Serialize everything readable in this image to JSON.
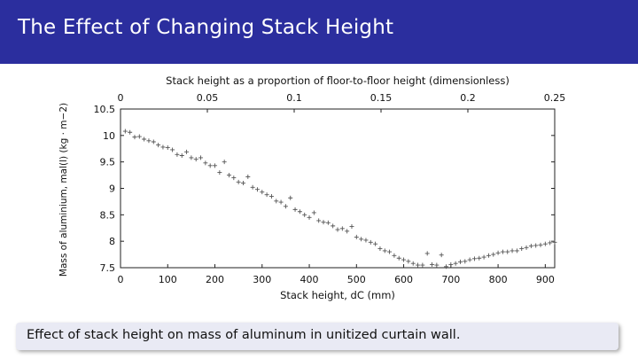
{
  "slide": {
    "title": "The Effect of Changing Stack Height",
    "caption": "Effect of stack height on mass of aluminum in unitized curtain wall."
  },
  "colors": {
    "title_bar": "#2b2e9e",
    "caption_box": "#e9eaf4"
  },
  "chart_data": {
    "type": "scatter",
    "title": "",
    "xlabel": "Stack height, dC (mm)",
    "ylabel": "Mass of aluminium, mal(l) (kg · m−2)",
    "x2label": "Stack height as a proportion of floor-to-floor height (dimensionless)",
    "xlim": [
      0,
      920
    ],
    "ylim": [
      7.5,
      10.5
    ],
    "x2lim": [
      0,
      0.25
    ],
    "xticks": [
      0,
      100,
      200,
      300,
      400,
      500,
      600,
      700,
      800,
      900
    ],
    "yticks": [
      7.5,
      8,
      8.5,
      9,
      9.5,
      10,
      10.5
    ],
    "x2ticks": [
      0,
      0.05,
      0.1,
      0.15,
      0.2,
      0.25
    ],
    "grid": false,
    "marker": "+",
    "series": [
      {
        "points": [
          [
            10,
            10.08
          ],
          [
            20,
            10.06
          ],
          [
            30,
            9.97
          ],
          [
            40,
            9.98
          ],
          [
            50,
            9.93
          ],
          [
            60,
            9.9
          ],
          [
            70,
            9.88
          ],
          [
            80,
            9.82
          ],
          [
            90,
            9.78
          ],
          [
            100,
            9.77
          ],
          [
            110,
            9.73
          ],
          [
            120,
            9.64
          ],
          [
            130,
            9.62
          ],
          [
            140,
            9.69
          ],
          [
            150,
            9.58
          ],
          [
            160,
            9.55
          ],
          [
            170,
            9.58
          ],
          [
            180,
            9.48
          ],
          [
            190,
            9.43
          ],
          [
            200,
            9.43
          ],
          [
            210,
            9.3
          ],
          [
            220,
            9.5
          ],
          [
            230,
            9.25
          ],
          [
            240,
            9.2
          ],
          [
            250,
            9.12
          ],
          [
            260,
            9.1
          ],
          [
            270,
            9.22
          ],
          [
            280,
            9.02
          ],
          [
            290,
            8.98
          ],
          [
            300,
            8.93
          ],
          [
            310,
            8.88
          ],
          [
            320,
            8.85
          ],
          [
            330,
            8.76
          ],
          [
            340,
            8.74
          ],
          [
            350,
            8.66
          ],
          [
            360,
            8.82
          ],
          [
            370,
            8.6
          ],
          [
            380,
            8.56
          ],
          [
            390,
            8.5
          ],
          [
            400,
            8.45
          ],
          [
            410,
            8.54
          ],
          [
            420,
            8.39
          ],
          [
            430,
            8.36
          ],
          [
            440,
            8.35
          ],
          [
            450,
            8.29
          ],
          [
            460,
            8.22
          ],
          [
            470,
            8.24
          ],
          [
            480,
            8.19
          ],
          [
            490,
            8.28
          ],
          [
            500,
            8.08
          ],
          [
            510,
            8.04
          ],
          [
            520,
            8.02
          ],
          [
            530,
            7.98
          ],
          [
            540,
            7.95
          ],
          [
            550,
            7.86
          ],
          [
            560,
            7.82
          ],
          [
            570,
            7.8
          ],
          [
            580,
            7.73
          ],
          [
            590,
            7.68
          ],
          [
            600,
            7.65
          ],
          [
            610,
            7.62
          ],
          [
            620,
            7.58
          ],
          [
            630,
            7.55
          ],
          [
            640,
            7.55
          ],
          [
            650,
            7.77
          ],
          [
            660,
            7.56
          ],
          [
            670,
            7.55
          ],
          [
            680,
            7.74
          ],
          [
            690,
            7.52
          ],
          [
            700,
            7.56
          ],
          [
            710,
            7.58
          ],
          [
            720,
            7.61
          ],
          [
            730,
            7.62
          ],
          [
            740,
            7.65
          ],
          [
            750,
            7.67
          ],
          [
            760,
            7.68
          ],
          [
            770,
            7.7
          ],
          [
            780,
            7.73
          ],
          [
            790,
            7.75
          ],
          [
            800,
            7.78
          ],
          [
            810,
            7.8
          ],
          [
            820,
            7.8
          ],
          [
            830,
            7.82
          ],
          [
            840,
            7.82
          ],
          [
            850,
            7.86
          ],
          [
            860,
            7.88
          ],
          [
            870,
            7.91
          ],
          [
            880,
            7.92
          ],
          [
            890,
            7.93
          ],
          [
            900,
            7.95
          ],
          [
            910,
            7.97
          ],
          [
            920,
            7.98
          ]
        ]
      }
    ]
  }
}
